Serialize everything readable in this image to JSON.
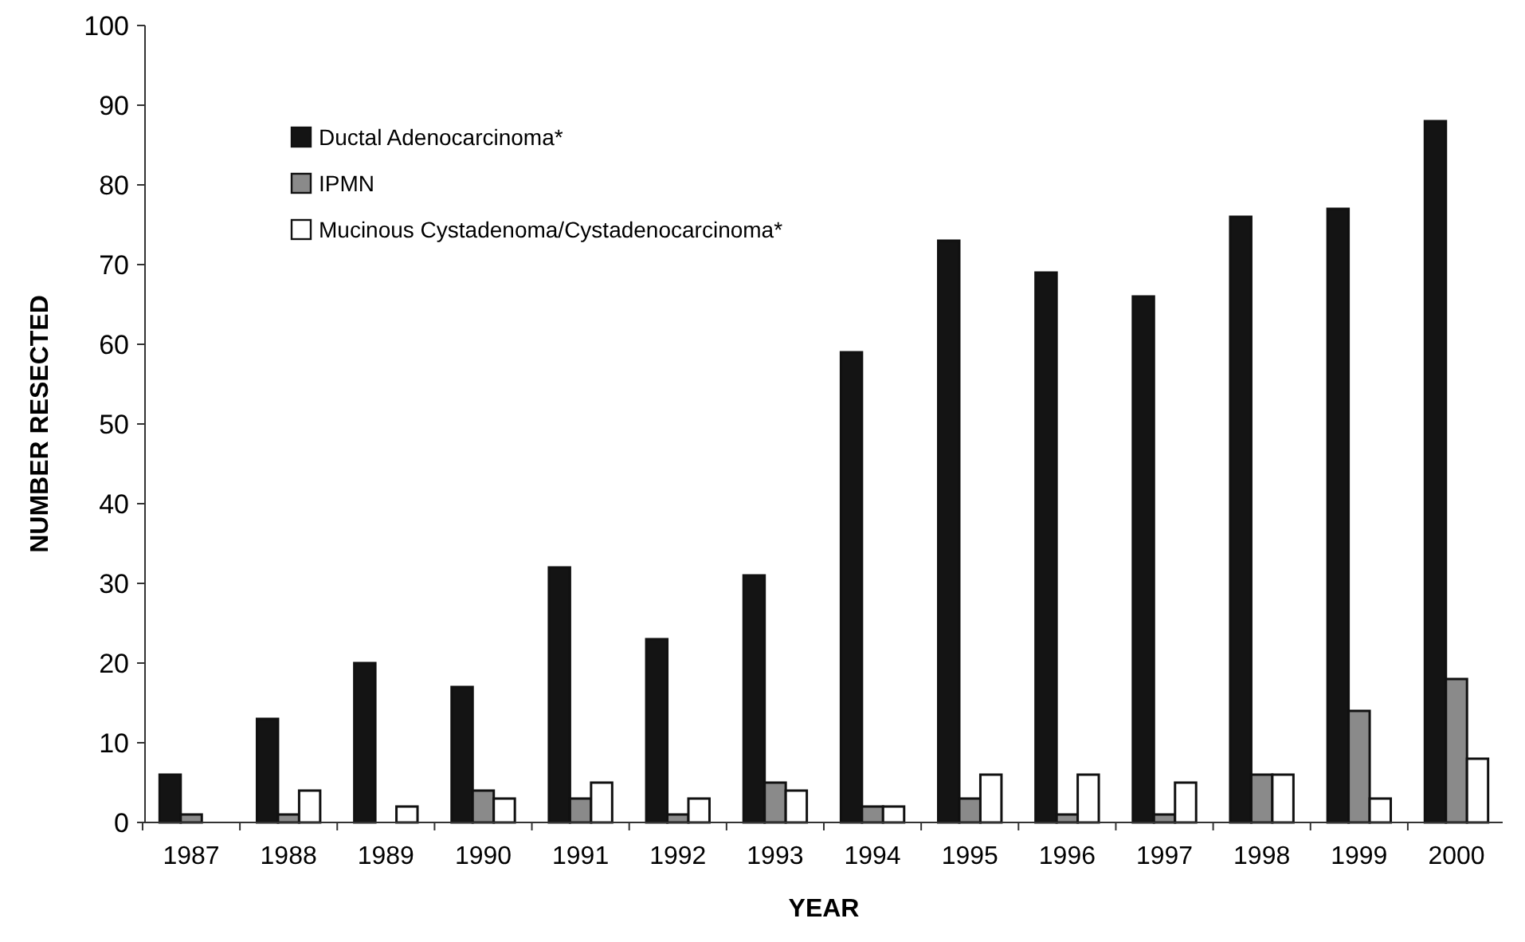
{
  "chart_data": {
    "type": "bar",
    "xlabel": "YEAR",
    "ylabel": "NUMBER RESECTED",
    "categories": [
      "1987",
      "1988",
      "1989",
      "1990",
      "1991",
      "1992",
      "1993",
      "1994",
      "1995",
      "1996",
      "1997",
      "1998",
      "1999",
      "2000"
    ],
    "series": [
      {
        "name": "Ductal Adenocarcinoma*",
        "color": "#141414",
        "values": [
          6,
          13,
          20,
          17,
          32,
          23,
          31,
          59,
          73,
          69,
          66,
          76,
          77,
          88
        ]
      },
      {
        "name": "IPMN",
        "color": "#8a8a8a",
        "values": [
          1,
          1,
          0,
          4,
          3,
          1,
          5,
          2,
          3,
          1,
          1,
          6,
          14,
          18
        ]
      },
      {
        "name": "Mucinous Cystadenoma/Cystadenocarcinoma*",
        "color": "#ffffff",
        "values": [
          0,
          4,
          2,
          3,
          5,
          3,
          4,
          2,
          6,
          6,
          5,
          6,
          3,
          8
        ]
      }
    ],
    "ylim": [
      0,
      100
    ],
    "yticks": [
      0,
      10,
      20,
      30,
      40,
      50,
      60,
      70,
      80,
      90,
      100
    ],
    "legend": "top left"
  }
}
